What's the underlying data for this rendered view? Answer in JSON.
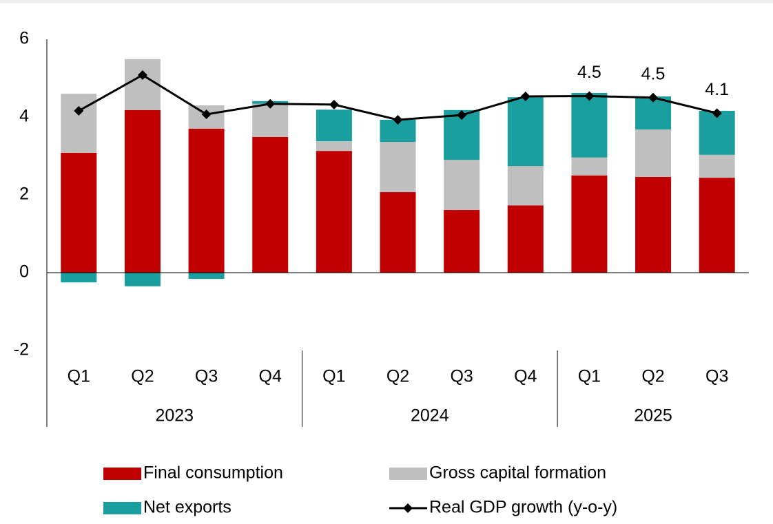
{
  "chart_data": {
    "type": "stacked-bar-line",
    "categories": [
      "Q1",
      "Q2",
      "Q3",
      "Q4",
      "Q1",
      "Q2",
      "Q3",
      "Q4",
      "Q1",
      "Q2",
      "Q3"
    ],
    "category_groups": [
      {
        "label": "2023",
        "size": 4
      },
      {
        "label": "2024",
        "size": 4
      },
      {
        "label": "2025",
        "size": 3
      }
    ],
    "series": [
      {
        "name": "Final consumption",
        "type": "bar",
        "color": "#c00000",
        "values": [
          3.08,
          4.18,
          3.7,
          3.49,
          3.13,
          2.07,
          1.61,
          1.73,
          2.5,
          2.46,
          2.44
        ]
      },
      {
        "name": "Gross capital formation",
        "type": "bar",
        "color": "#bfbfbf",
        "values": [
          1.52,
          1.31,
          0.6,
          0.85,
          0.25,
          1.29,
          1.29,
          1.01,
          0.46,
          1.22,
          0.59
        ]
      },
      {
        "name": "Net exports",
        "type": "bar",
        "color": "#1a9e9e",
        "values": [
          -0.25,
          -0.35,
          -0.16,
          0.07,
          0.81,
          0.57,
          1.28,
          1.77,
          1.66,
          0.85,
          1.13
        ]
      },
      {
        "name": "Real GDP growth (y-o-y)",
        "type": "line",
        "color": "#000000",
        "values": [
          4.16,
          5.08,
          4.07,
          4.34,
          4.32,
          3.93,
          4.05,
          4.53,
          4.54,
          4.5,
          4.1
        ],
        "value_labels": [
          null,
          null,
          null,
          null,
          null,
          null,
          null,
          null,
          "4.5",
          "4.5",
          "4.1"
        ]
      }
    ],
    "ylim": [
      -2,
      6
    ],
    "yticks": [
      -2,
      0,
      2,
      4,
      6
    ]
  }
}
